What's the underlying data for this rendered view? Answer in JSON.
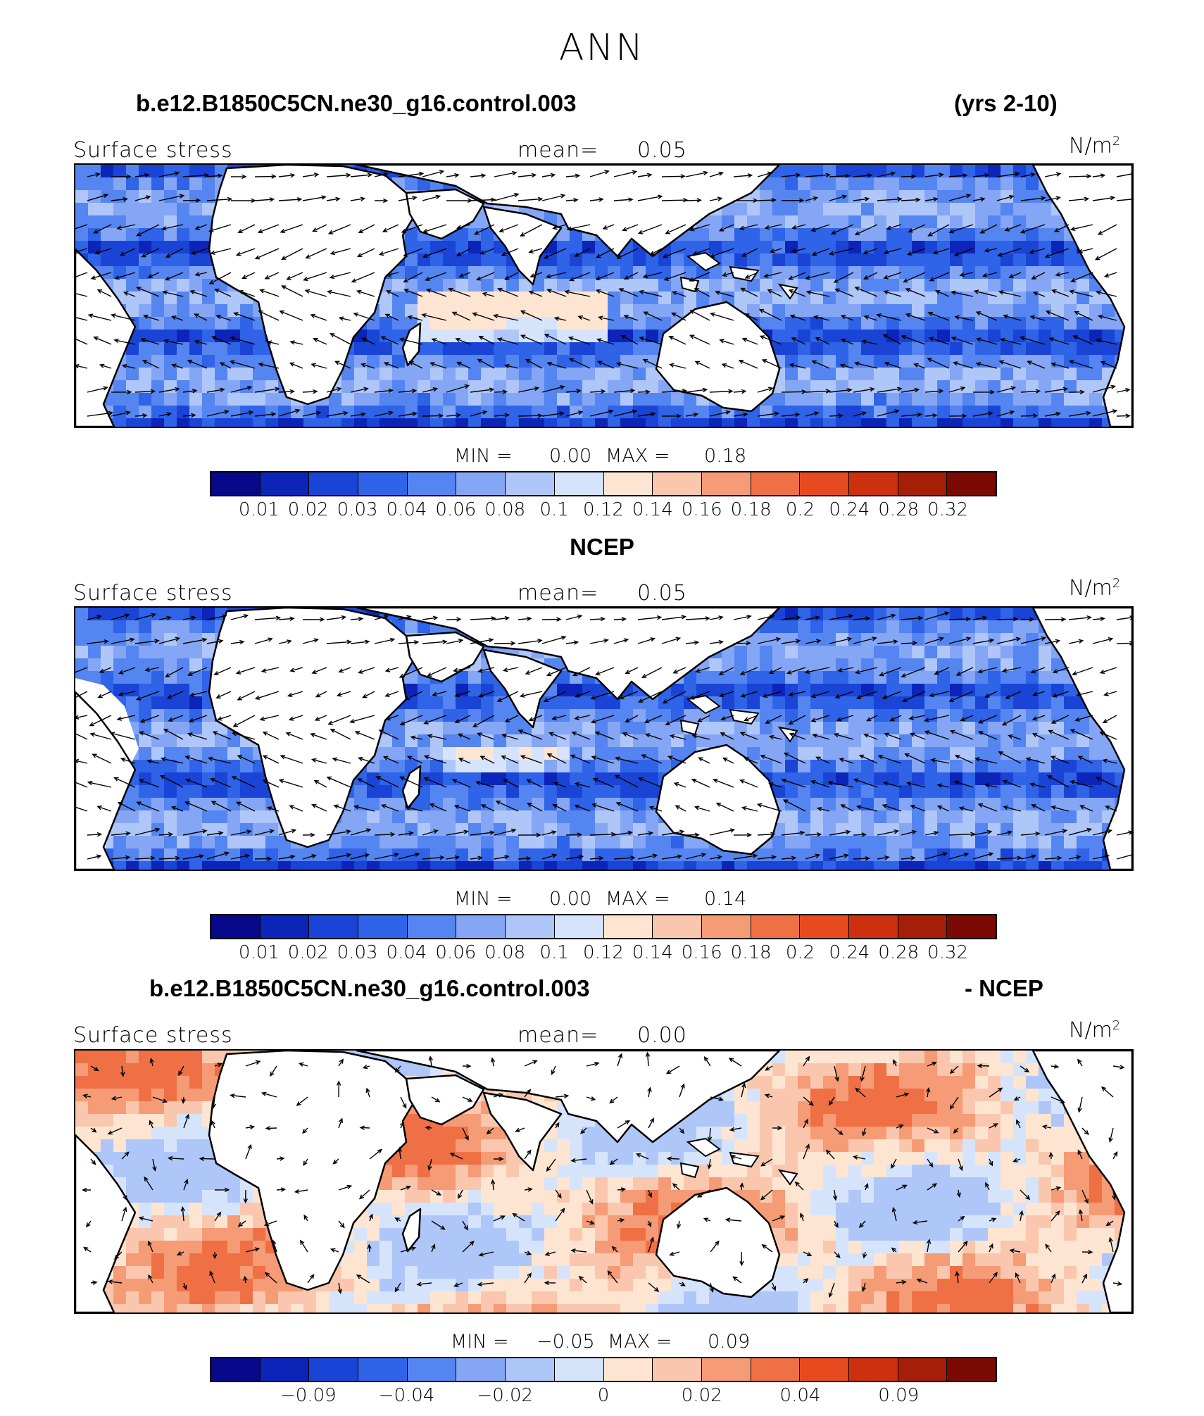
{
  "title": "ANN",
  "colormap": [
    "#08088a",
    "#0c25b8",
    "#1a44d6",
    "#2f63e8",
    "#5585f0",
    "#84a6f5",
    "#afc6f9",
    "#d6e4fb",
    "#fde5d2",
    "#fac7ae",
    "#f59b76",
    "#ef7045",
    "#e84a20",
    "#cd300e",
    "#a51e08",
    "#7b0b02"
  ],
  "panels": [
    {
      "header_left": "b.e12.B1850C5CN.ne30_g16.control.003",
      "header_right": "(yrs 2-10)",
      "left_label": "Surface stress",
      "mean_label": "mean=",
      "mean_value": "0.05",
      "unit": "N/m",
      "unit_sup": "2",
      "min_label": "MIN =",
      "min_value": "0.00",
      "max_label": "MAX =",
      "max_value": "0.18",
      "colorbar_ticks": [
        "0.01",
        "0.02",
        "0.03",
        "0.04",
        "0.06",
        "0.08",
        "0.1",
        "0.12",
        "0.14",
        "0.16",
        "0.18",
        "0.2",
        "0.24",
        "0.28",
        "0.32"
      ],
      "field": "model"
    },
    {
      "header_center": "NCEP",
      "left_label": "Surface stress",
      "mean_label": "mean=",
      "mean_value": "0.05",
      "unit": "N/m",
      "unit_sup": "2",
      "min_label": "MIN =",
      "min_value": "0.00",
      "max_label": "MAX =",
      "max_value": "0.14",
      "colorbar_ticks": [
        "0.01",
        "0.02",
        "0.03",
        "0.04",
        "0.06",
        "0.08",
        "0.1",
        "0.12",
        "0.14",
        "0.16",
        "0.18",
        "0.2",
        "0.24",
        "0.28",
        "0.32"
      ],
      "field": "obs"
    },
    {
      "header_left": "b.e12.B1850C5CN.ne30_g16.control.003",
      "header_right": "- NCEP",
      "left_label": "Surface stress",
      "mean_label": "mean=",
      "mean_value": "0.00",
      "unit": "N/m",
      "unit_sup": "2",
      "min_label": "MIN =",
      "min_value": "−0.05",
      "max_label": "MAX =",
      "max_value": "0.09",
      "colorbar_ticks": [
        "−0.09",
        "−0.04",
        "−0.02",
        "0",
        "0.02",
        "0.04",
        "0.09"
      ],
      "field": "diff"
    }
  ]
}
